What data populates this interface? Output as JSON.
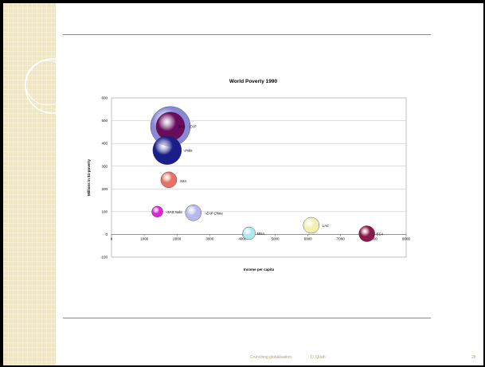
{
  "slide": {
    "footer_title": "Crunching globalisation",
    "footer_author": "D. Quah",
    "page_number": "28"
  },
  "colors": {
    "sidebar": "#f2e6bf",
    "rule": "#8a8a8a",
    "plot_border": "#999999"
  },
  "chart_data": {
    "type": "bubble",
    "title": "World Poverty 1990",
    "xlabel": "Income per capita",
    "ylabel": "Millions in $1-poverty",
    "xlim": [
      0,
      9000
    ],
    "ylim": [
      -100,
      600
    ],
    "xticks": [
      0,
      1000,
      2000,
      3000,
      4000,
      5000,
      6000,
      7000,
      8000,
      9000
    ],
    "yticks": [
      -100,
      0,
      100,
      200,
      300,
      400,
      500,
      600
    ],
    "grid": "horizontal",
    "series": [
      {
        "label": "SAS",
        "x": 1800,
        "y": 475,
        "size": 18,
        "color": "#6a0c5c",
        "label_dx": 10,
        "label_dy": 2
      },
      {
        "label": "EAP",
        "x": 1800,
        "y": 475,
        "size": 25,
        "color": "#8a88d8",
        "label_dx": 24,
        "label_dy": 2
      },
      {
        "label": "~India",
        "x": 1700,
        "y": 370,
        "size": 18,
        "color": "#1a1e8a",
        "label_dx": 20,
        "label_dy": 2
      },
      {
        "label": "SSA",
        "x": 1750,
        "y": 240,
        "size": 10,
        "color": "#e87068",
        "label_dx": 14,
        "label_dy": 3
      },
      {
        "label": "~SAS India",
        "x": 1400,
        "y": 100,
        "size": 7,
        "color": "#e020e0",
        "label_dx": 10,
        "label_dy": 2
      },
      {
        "label": "~EAP China",
        "x": 2500,
        "y": 95,
        "size": 10,
        "color": "#b8b8ec",
        "label_dx": 14,
        "label_dy": 2
      },
      {
        "label": "MNA",
        "x": 4200,
        "y": 5,
        "size": 8,
        "color": "#aee8f0",
        "label_dx": 10,
        "label_dy": 2
      },
      {
        "label": "LAC",
        "x": 6100,
        "y": 40,
        "size": 10,
        "color": "#f4f0b4",
        "label_dx": 14,
        "label_dy": 2
      },
      {
        "label": "ECA",
        "x": 7800,
        "y": 3,
        "size": 10,
        "color": "#8a1a4a",
        "label_dx": 12,
        "label_dy": 2
      }
    ]
  }
}
